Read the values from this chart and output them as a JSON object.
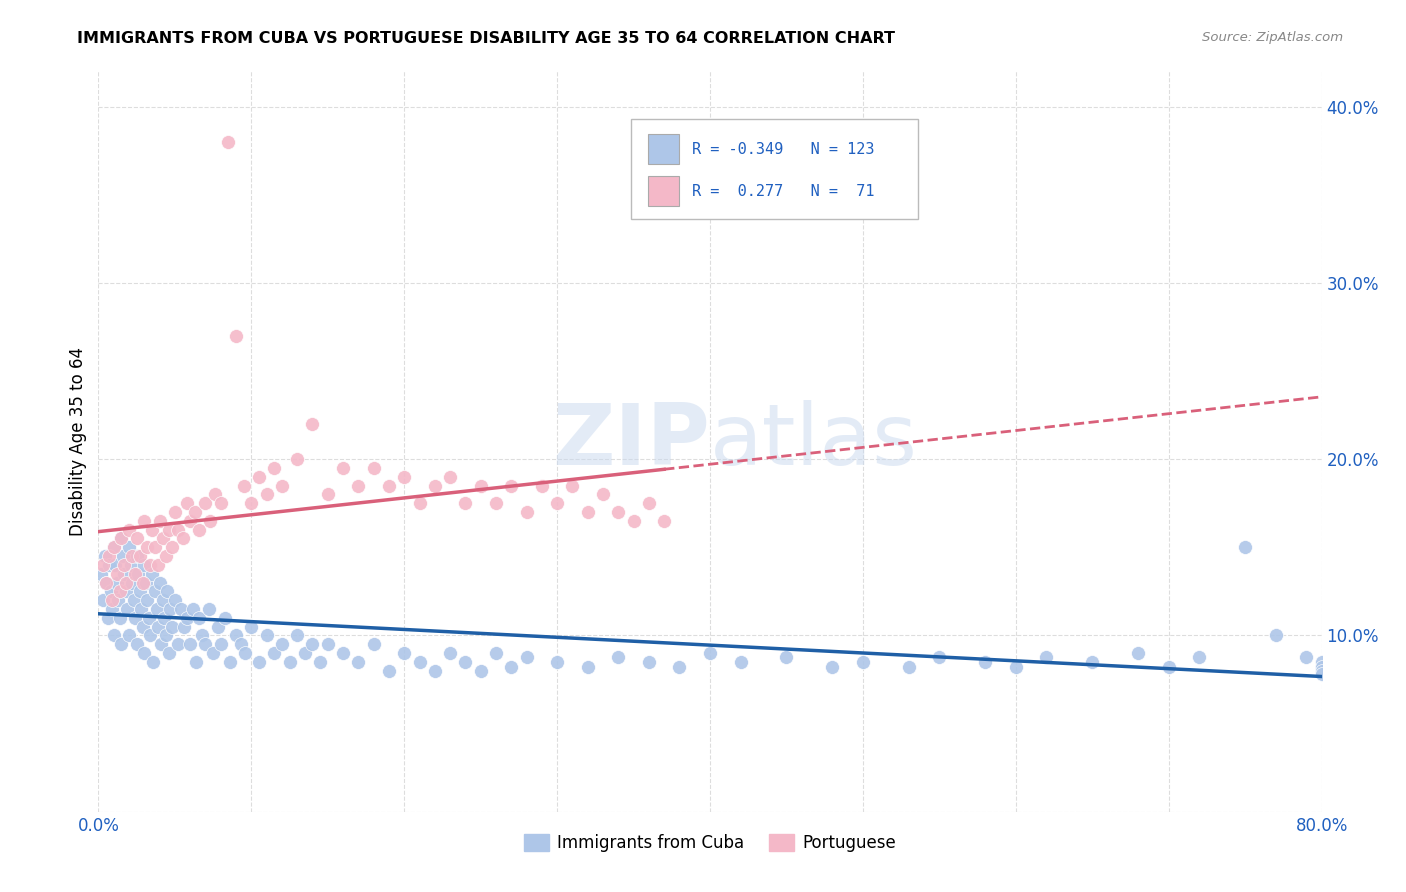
{
  "title": "IMMIGRANTS FROM CUBA VS PORTUGUESE DISABILITY AGE 35 TO 64 CORRELATION CHART",
  "source": "Source: ZipAtlas.com",
  "ylabel": "Disability Age 35 to 64",
  "xlim": [
    0.0,
    0.8
  ],
  "ylim": [
    0.0,
    0.42
  ],
  "xticks": [
    0.0,
    0.1,
    0.2,
    0.3,
    0.4,
    0.5,
    0.6,
    0.7,
    0.8
  ],
  "yticks_right": [
    0.0,
    0.1,
    0.2,
    0.3,
    0.4
  ],
  "cuba_r": -0.349,
  "cuba_n": 123,
  "port_r": 0.277,
  "port_n": 71,
  "cuba_color": "#aec6e8",
  "port_color": "#f4b8c8",
  "cuba_line_color": "#1f5fa6",
  "port_line_color": "#d9607a",
  "legend_r_color": "#2060c0",
  "background_color": "#ffffff",
  "grid_color": "#dddddd",
  "cuba_x": [
    0.002,
    0.003,
    0.004,
    0.005,
    0.006,
    0.007,
    0.008,
    0.009,
    0.01,
    0.01,
    0.011,
    0.012,
    0.013,
    0.014,
    0.015,
    0.015,
    0.016,
    0.017,
    0.018,
    0.019,
    0.02,
    0.02,
    0.021,
    0.022,
    0.023,
    0.024,
    0.025,
    0.025,
    0.026,
    0.027,
    0.028,
    0.029,
    0.03,
    0.03,
    0.031,
    0.032,
    0.033,
    0.034,
    0.035,
    0.036,
    0.037,
    0.038,
    0.039,
    0.04,
    0.041,
    0.042,
    0.043,
    0.044,
    0.045,
    0.046,
    0.047,
    0.048,
    0.05,
    0.052,
    0.054,
    0.056,
    0.058,
    0.06,
    0.062,
    0.064,
    0.066,
    0.068,
    0.07,
    0.072,
    0.075,
    0.078,
    0.08,
    0.083,
    0.086,
    0.09,
    0.093,
    0.096,
    0.1,
    0.105,
    0.11,
    0.115,
    0.12,
    0.125,
    0.13,
    0.135,
    0.14,
    0.145,
    0.15,
    0.16,
    0.17,
    0.18,
    0.19,
    0.2,
    0.21,
    0.22,
    0.23,
    0.24,
    0.25,
    0.26,
    0.27,
    0.28,
    0.3,
    0.32,
    0.34,
    0.36,
    0.38,
    0.4,
    0.42,
    0.45,
    0.48,
    0.5,
    0.53,
    0.55,
    0.58,
    0.6,
    0.62,
    0.65,
    0.68,
    0.7,
    0.72,
    0.75,
    0.77,
    0.79,
    0.8,
    0.8,
    0.8,
    0.8,
    0.8
  ],
  "cuba_y": [
    0.135,
    0.12,
    0.145,
    0.13,
    0.11,
    0.14,
    0.125,
    0.115,
    0.15,
    0.1,
    0.14,
    0.13,
    0.12,
    0.11,
    0.155,
    0.095,
    0.145,
    0.135,
    0.125,
    0.115,
    0.15,
    0.1,
    0.14,
    0.13,
    0.12,
    0.11,
    0.145,
    0.095,
    0.135,
    0.125,
    0.115,
    0.105,
    0.14,
    0.09,
    0.13,
    0.12,
    0.11,
    0.1,
    0.135,
    0.085,
    0.125,
    0.115,
    0.105,
    0.13,
    0.095,
    0.12,
    0.11,
    0.1,
    0.125,
    0.09,
    0.115,
    0.105,
    0.12,
    0.095,
    0.115,
    0.105,
    0.11,
    0.095,
    0.115,
    0.085,
    0.11,
    0.1,
    0.095,
    0.115,
    0.09,
    0.105,
    0.095,
    0.11,
    0.085,
    0.1,
    0.095,
    0.09,
    0.105,
    0.085,
    0.1,
    0.09,
    0.095,
    0.085,
    0.1,
    0.09,
    0.095,
    0.085,
    0.095,
    0.09,
    0.085,
    0.095,
    0.08,
    0.09,
    0.085,
    0.08,
    0.09,
    0.085,
    0.08,
    0.09,
    0.082,
    0.088,
    0.085,
    0.082,
    0.088,
    0.085,
    0.082,
    0.09,
    0.085,
    0.088,
    0.082,
    0.085,
    0.082,
    0.088,
    0.085,
    0.082,
    0.088,
    0.085,
    0.09,
    0.082,
    0.088,
    0.15,
    0.1,
    0.088,
    0.082,
    0.085,
    0.082,
    0.08,
    0.078
  ],
  "port_x": [
    0.003,
    0.005,
    0.007,
    0.009,
    0.01,
    0.012,
    0.014,
    0.015,
    0.017,
    0.018,
    0.02,
    0.022,
    0.024,
    0.025,
    0.027,
    0.029,
    0.03,
    0.032,
    0.034,
    0.035,
    0.037,
    0.039,
    0.04,
    0.042,
    0.044,
    0.046,
    0.048,
    0.05,
    0.052,
    0.055,
    0.058,
    0.06,
    0.063,
    0.066,
    0.07,
    0.073,
    0.076,
    0.08,
    0.085,
    0.09,
    0.095,
    0.1,
    0.105,
    0.11,
    0.115,
    0.12,
    0.13,
    0.14,
    0.15,
    0.16,
    0.17,
    0.18,
    0.19,
    0.2,
    0.21,
    0.22,
    0.23,
    0.24,
    0.25,
    0.26,
    0.27,
    0.28,
    0.29,
    0.3,
    0.31,
    0.32,
    0.33,
    0.34,
    0.35,
    0.36,
    0.37
  ],
  "port_y": [
    0.14,
    0.13,
    0.145,
    0.12,
    0.15,
    0.135,
    0.125,
    0.155,
    0.14,
    0.13,
    0.16,
    0.145,
    0.135,
    0.155,
    0.145,
    0.13,
    0.165,
    0.15,
    0.14,
    0.16,
    0.15,
    0.14,
    0.165,
    0.155,
    0.145,
    0.16,
    0.15,
    0.17,
    0.16,
    0.155,
    0.175,
    0.165,
    0.17,
    0.16,
    0.175,
    0.165,
    0.18,
    0.175,
    0.38,
    0.27,
    0.185,
    0.175,
    0.19,
    0.18,
    0.195,
    0.185,
    0.2,
    0.22,
    0.18,
    0.195,
    0.185,
    0.195,
    0.185,
    0.19,
    0.175,
    0.185,
    0.19,
    0.175,
    0.185,
    0.175,
    0.185,
    0.17,
    0.185,
    0.175,
    0.185,
    0.17,
    0.18,
    0.17,
    0.165,
    0.175,
    0.165
  ]
}
